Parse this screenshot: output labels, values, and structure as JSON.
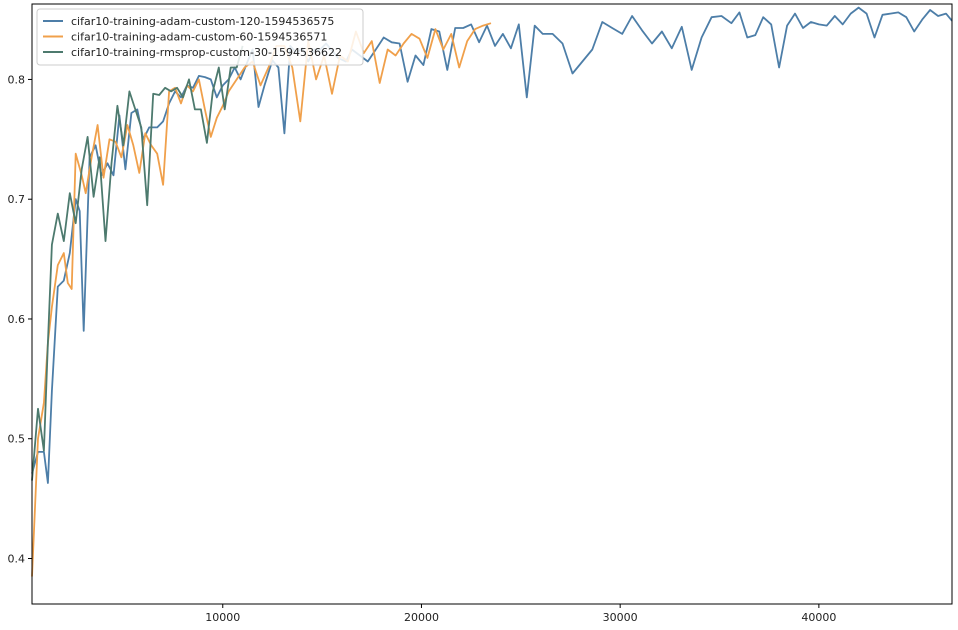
{
  "chart_data": {
    "type": "line",
    "title": "",
    "xlabel": "",
    "ylabel": "",
    "xlim": [
      400,
      46700
    ],
    "ylim": [
      0.362,
      0.863
    ],
    "x_ticks": [
      10000,
      20000,
      30000,
      40000
    ],
    "x_tick_labels": [
      "10000",
      "20000",
      "30000",
      "40000"
    ],
    "y_ticks": [
      0.4,
      0.5,
      0.6,
      0.7,
      0.8
    ],
    "y_tick_labels": [
      "0.4",
      "0.5",
      "0.6",
      "0.7",
      "0.8"
    ],
    "grid": false,
    "legend_position": "top-left",
    "series": [
      {
        "name": "cifar10-training-adam-custom-120-1594536575",
        "color": "#4d7ea8",
        "points": [
          [
            400,
            0.471
          ],
          [
            700,
            0.489
          ],
          [
            1000,
            0.489
          ],
          [
            1200,
            0.463
          ],
          [
            1400,
            0.54
          ],
          [
            1700,
            0.627
          ],
          [
            2000,
            0.632
          ],
          [
            2300,
            0.655
          ],
          [
            2600,
            0.7
          ],
          [
            2800,
            0.69
          ],
          [
            3000,
            0.59
          ],
          [
            3300,
            0.735
          ],
          [
            3600,
            0.745
          ],
          [
            3900,
            0.72
          ],
          [
            4200,
            0.73
          ],
          [
            4500,
            0.72
          ],
          [
            4800,
            0.77
          ],
          [
            5100,
            0.725
          ],
          [
            5400,
            0.772
          ],
          [
            5700,
            0.775
          ],
          [
            6000,
            0.75
          ],
          [
            6300,
            0.76
          ],
          [
            6700,
            0.76
          ],
          [
            7000,
            0.765
          ],
          [
            7300,
            0.78
          ],
          [
            7600,
            0.79
          ],
          [
            7900,
            0.785
          ],
          [
            8200,
            0.795
          ],
          [
            8500,
            0.793
          ],
          [
            8800,
            0.803
          ],
          [
            9100,
            0.802
          ],
          [
            9400,
            0.8
          ],
          [
            9700,
            0.785
          ],
          [
            10000,
            0.795
          ],
          [
            10300,
            0.8
          ],
          [
            10600,
            0.81
          ],
          [
            10900,
            0.8
          ],
          [
            11200,
            0.813
          ],
          [
            11500,
            0.825
          ],
          [
            11800,
            0.777
          ],
          [
            12100,
            0.795
          ],
          [
            12500,
            0.816
          ],
          [
            12800,
            0.81
          ],
          [
            13100,
            0.755
          ],
          [
            13400,
            0.828
          ],
          [
            13700,
            0.822
          ],
          [
            14000,
            0.826
          ],
          [
            14300,
            0.815
          ],
          [
            14600,
            0.825
          ],
          [
            14900,
            0.825
          ],
          [
            15200,
            0.83
          ],
          [
            15500,
            0.824
          ],
          [
            15800,
            0.818
          ],
          [
            16200,
            0.815
          ],
          [
            16500,
            0.825
          ],
          [
            16900,
            0.82
          ],
          [
            17300,
            0.815
          ],
          [
            17700,
            0.825
          ],
          [
            18100,
            0.835
          ],
          [
            18500,
            0.831
          ],
          [
            18900,
            0.83
          ],
          [
            19300,
            0.798
          ],
          [
            19700,
            0.82
          ],
          [
            20100,
            0.812
          ],
          [
            20500,
            0.842
          ],
          [
            20900,
            0.84
          ],
          [
            21300,
            0.808
          ],
          [
            21700,
            0.843
          ],
          [
            22100,
            0.843
          ],
          [
            22500,
            0.846
          ],
          [
            22900,
            0.831
          ],
          [
            23300,
            0.845
          ],
          [
            23700,
            0.828
          ],
          [
            24100,
            0.838
          ],
          [
            24500,
            0.826
          ],
          [
            24900,
            0.846
          ],
          [
            25300,
            0.785
          ],
          [
            25700,
            0.845
          ],
          [
            26100,
            0.838
          ],
          [
            26600,
            0.838
          ],
          [
            27100,
            0.83
          ],
          [
            27600,
            0.805
          ],
          [
            28100,
            0.815
          ],
          [
            28600,
            0.825
          ],
          [
            29100,
            0.848
          ],
          [
            29600,
            0.843
          ],
          [
            30100,
            0.838
          ],
          [
            30600,
            0.853
          ],
          [
            31100,
            0.841
          ],
          [
            31600,
            0.83
          ],
          [
            32100,
            0.84
          ],
          [
            32600,
            0.826
          ],
          [
            33100,
            0.844
          ],
          [
            33600,
            0.808
          ],
          [
            34100,
            0.835
          ],
          [
            34600,
            0.852
          ],
          [
            35100,
            0.853
          ],
          [
            35600,
            0.847
          ],
          [
            36000,
            0.856
          ],
          [
            36400,
            0.835
          ],
          [
            36800,
            0.837
          ],
          [
            37200,
            0.852
          ],
          [
            37600,
            0.846
          ],
          [
            38000,
            0.81
          ],
          [
            38400,
            0.845
          ],
          [
            38800,
            0.855
          ],
          [
            39200,
            0.843
          ],
          [
            39600,
            0.848
          ],
          [
            40000,
            0.846
          ],
          [
            40400,
            0.845
          ],
          [
            40800,
            0.853
          ],
          [
            41200,
            0.846
          ],
          [
            41600,
            0.855
          ],
          [
            42000,
            0.86
          ],
          [
            42400,
            0.855
          ],
          [
            42800,
            0.835
          ],
          [
            43200,
            0.854
          ],
          [
            43600,
            0.855
          ],
          [
            44000,
            0.856
          ],
          [
            44400,
            0.852
          ],
          [
            44800,
            0.84
          ],
          [
            45200,
            0.85
          ],
          [
            45600,
            0.858
          ],
          [
            46000,
            0.853
          ],
          [
            46400,
            0.855
          ],
          [
            46700,
            0.849
          ]
        ]
      },
      {
        "name": "cifar10-training-adam-custom-60-1594536571",
        "color": "#f0a04b",
        "points": [
          [
            400,
            0.385
          ],
          [
            700,
            0.5
          ],
          [
            1000,
            0.53
          ],
          [
            1200,
            0.58
          ],
          [
            1400,
            0.61
          ],
          [
            1700,
            0.645
          ],
          [
            2000,
            0.655
          ],
          [
            2200,
            0.63
          ],
          [
            2400,
            0.625
          ],
          [
            2600,
            0.738
          ],
          [
            2900,
            0.72
          ],
          [
            3100,
            0.705
          ],
          [
            3400,
            0.735
          ],
          [
            3700,
            0.762
          ],
          [
            4000,
            0.718
          ],
          [
            4300,
            0.75
          ],
          [
            4600,
            0.748
          ],
          [
            4900,
            0.735
          ],
          [
            5200,
            0.762
          ],
          [
            5500,
            0.745
          ],
          [
            5800,
            0.722
          ],
          [
            6100,
            0.755
          ],
          [
            6400,
            0.745
          ],
          [
            6700,
            0.738
          ],
          [
            7000,
            0.712
          ],
          [
            7300,
            0.79
          ],
          [
            7600,
            0.793
          ],
          [
            7900,
            0.78
          ],
          [
            8200,
            0.795
          ],
          [
            8500,
            0.79
          ],
          [
            8800,
            0.8
          ],
          [
            9100,
            0.775
          ],
          [
            9400,
            0.752
          ],
          [
            9700,
            0.768
          ],
          [
            10000,
            0.778
          ],
          [
            10300,
            0.79
          ],
          [
            10700,
            0.8
          ],
          [
            11100,
            0.81
          ],
          [
            11500,
            0.815
          ],
          [
            11900,
            0.795
          ],
          [
            12300,
            0.81
          ],
          [
            12700,
            0.828
          ],
          [
            13100,
            0.828
          ],
          [
            13500,
            0.81
          ],
          [
            13900,
            0.765
          ],
          [
            14300,
            0.832
          ],
          [
            14700,
            0.8
          ],
          [
            15100,
            0.82
          ],
          [
            15500,
            0.788
          ],
          [
            15900,
            0.82
          ],
          [
            16300,
            0.815
          ],
          [
            16700,
            0.84
          ],
          [
            17100,
            0.822
          ],
          [
            17500,
            0.832
          ],
          [
            17900,
            0.797
          ],
          [
            18300,
            0.825
          ],
          [
            18700,
            0.82
          ],
          [
            19100,
            0.83
          ],
          [
            19500,
            0.838
          ],
          [
            19900,
            0.834
          ],
          [
            20300,
            0.818
          ],
          [
            20700,
            0.842
          ],
          [
            21100,
            0.825
          ],
          [
            21500,
            0.838
          ],
          [
            21900,
            0.81
          ],
          [
            22300,
            0.832
          ],
          [
            22700,
            0.842
          ],
          [
            23100,
            0.845
          ],
          [
            23500,
            0.847
          ]
        ]
      },
      {
        "name": "cifar10-training-rmsprop-custom-30-1594536622",
        "color": "#4d7a6e",
        "points": [
          [
            400,
            0.465
          ],
          [
            700,
            0.525
          ],
          [
            1000,
            0.49
          ],
          [
            1200,
            0.58
          ],
          [
            1400,
            0.662
          ],
          [
            1700,
            0.688
          ],
          [
            2000,
            0.665
          ],
          [
            2300,
            0.705
          ],
          [
            2600,
            0.68
          ],
          [
            2900,
            0.725
          ],
          [
            3200,
            0.752
          ],
          [
            3500,
            0.702
          ],
          [
            3800,
            0.735
          ],
          [
            4100,
            0.665
          ],
          [
            4400,
            0.73
          ],
          [
            4700,
            0.778
          ],
          [
            5000,
            0.745
          ],
          [
            5300,
            0.79
          ],
          [
            5600,
            0.775
          ],
          [
            5900,
            0.76
          ],
          [
            6200,
            0.695
          ],
          [
            6500,
            0.788
          ],
          [
            6800,
            0.787
          ],
          [
            7100,
            0.793
          ],
          [
            7400,
            0.79
          ],
          [
            7700,
            0.793
          ],
          [
            8000,
            0.785
          ],
          [
            8300,
            0.8
          ],
          [
            8600,
            0.775
          ],
          [
            8900,
            0.775
          ],
          [
            9200,
            0.747
          ],
          [
            9500,
            0.79
          ],
          [
            9800,
            0.81
          ],
          [
            10100,
            0.775
          ],
          [
            10400,
            0.81
          ],
          [
            10700,
            0.81
          ],
          [
            11000,
            0.828
          ]
        ]
      }
    ]
  }
}
